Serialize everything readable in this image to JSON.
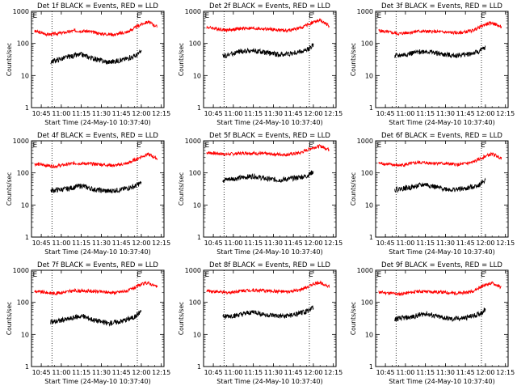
{
  "chart_data": [
    {
      "title": "Det 1f BLACK = Events, RED = LLD",
      "xlabel": "Start Time (24-May-10 10:37:40)",
      "ylabel": "Counts/sec",
      "type": "line",
      "yscale": "log",
      "ylim": [
        1,
        1000
      ],
      "xticks": [
        "10:45",
        "11:00",
        "11:15",
        "11:30",
        "11:45",
        "12:00",
        "12:15"
      ],
      "yticks": [
        "1",
        "10",
        "100",
        "1000"
      ],
      "markers": [
        "E",
        "E"
      ],
      "series": [
        {
          "color": "#ff0000",
          "values": [
            {
              "x": "10:40",
              "y": 240
            },
            {
              "x": "10:50",
              "y": 190
            },
            {
              "x": "11:00",
              "y": 210
            },
            {
              "x": "11:10",
              "y": 250
            },
            {
              "x": "11:20",
              "y": 240
            },
            {
              "x": "11:30",
              "y": 200
            },
            {
              "x": "11:40",
              "y": 190
            },
            {
              "x": "11:50",
              "y": 230
            },
            {
              "x": "12:00",
              "y": 400
            },
            {
              "x": "12:05",
              "y": 470
            },
            {
              "x": "12:12",
              "y": 330
            }
          ]
        },
        {
          "color": "#000000",
          "values": [
            {
              "x": "10:52",
              "y": 27
            },
            {
              "x": "11:05",
              "y": 38
            },
            {
              "x": "11:15",
              "y": 45
            },
            {
              "x": "11:25",
              "y": 33
            },
            {
              "x": "11:35",
              "y": 26
            },
            {
              "x": "11:45",
              "y": 30
            },
            {
              "x": "11:55",
              "y": 40
            },
            {
              "x": "12:00",
              "y": 55
            }
          ]
        }
      ]
    },
    {
      "title": "Det 2f BLACK = Events, RED = LLD",
      "xlabel": "Start Time (24-May-10 10:37:40)",
      "ylabel": "Counts/sec",
      "type": "line",
      "yscale": "log",
      "ylim": [
        1,
        1000
      ],
      "xticks": [
        "10:45",
        "11:00",
        "11:15",
        "11:30",
        "11:45",
        "12:00",
        "12:15"
      ],
      "yticks": [
        "1",
        "10",
        "100",
        "1000"
      ],
      "markers": [
        "E",
        "E"
      ],
      "series": [
        {
          "color": "#ff0000",
          "values": [
            {
              "x": "10:40",
              "y": 320
            },
            {
              "x": "10:55",
              "y": 260
            },
            {
              "x": "11:10",
              "y": 300
            },
            {
              "x": "11:25",
              "y": 280
            },
            {
              "x": "11:40",
              "y": 250
            },
            {
              "x": "11:50",
              "y": 300
            },
            {
              "x": "12:00",
              "y": 460
            },
            {
              "x": "12:05",
              "y": 520
            },
            {
              "x": "12:12",
              "y": 350
            }
          ]
        },
        {
          "color": "#000000",
          "values": [
            {
              "x": "10:52",
              "y": 40
            },
            {
              "x": "11:05",
              "y": 55
            },
            {
              "x": "11:15",
              "y": 60
            },
            {
              "x": "11:25",
              "y": 50
            },
            {
              "x": "11:35",
              "y": 45
            },
            {
              "x": "11:45",
              "y": 50
            },
            {
              "x": "11:55",
              "y": 60
            },
            {
              "x": "12:00",
              "y": 90
            }
          ]
        }
      ]
    },
    {
      "title": "Det 3f BLACK = Events, RED = LLD",
      "xlabel": "Start Time (24-May-10 10:37:40)",
      "ylabel": "Counts/sec",
      "type": "line",
      "yscale": "log",
      "ylim": [
        1,
        1000
      ],
      "xticks": [
        "10:45",
        "11:00",
        "11:15",
        "11:30",
        "11:45",
        "12:00",
        "12:15"
      ],
      "yticks": [
        "1",
        "10",
        "100",
        "1000"
      ],
      "markers": [
        "E",
        "E"
      ],
      "series": [
        {
          "color": "#ff0000",
          "values": [
            {
              "x": "10:40",
              "y": 250
            },
            {
              "x": "10:55",
              "y": 200
            },
            {
              "x": "11:10",
              "y": 240
            },
            {
              "x": "11:25",
              "y": 230
            },
            {
              "x": "11:40",
              "y": 210
            },
            {
              "x": "11:50",
              "y": 250
            },
            {
              "x": "12:00",
              "y": 390
            },
            {
              "x": "12:05",
              "y": 440
            },
            {
              "x": "12:12",
              "y": 320
            }
          ]
        },
        {
          "color": "#000000",
          "values": [
            {
              "x": "10:52",
              "y": 40
            },
            {
              "x": "11:05",
              "y": 50
            },
            {
              "x": "11:15",
              "y": 58
            },
            {
              "x": "11:25",
              "y": 48
            },
            {
              "x": "11:35",
              "y": 42
            },
            {
              "x": "11:45",
              "y": 45
            },
            {
              "x": "11:55",
              "y": 55
            },
            {
              "x": "12:00",
              "y": 75
            }
          ]
        }
      ]
    },
    {
      "title": "Det 4f BLACK = Events, RED = LLD",
      "xlabel": "Start Time (24-May-10 10:37:40)",
      "ylabel": "Counts/sec",
      "type": "line",
      "yscale": "log",
      "ylim": [
        1,
        1000
      ],
      "xticks": [
        "10:45",
        "11:00",
        "11:15",
        "11:30",
        "11:45",
        "12:00",
        "12:15"
      ],
      "yticks": [
        "1",
        "10",
        "100",
        "1000"
      ],
      "markers": [
        "E",
        "E"
      ],
      "series": [
        {
          "color": "#ff0000",
          "values": [
            {
              "x": "10:40",
              "y": 190
            },
            {
              "x": "10:55",
              "y": 160
            },
            {
              "x": "11:10",
              "y": 200
            },
            {
              "x": "11:25",
              "y": 190
            },
            {
              "x": "11:40",
              "y": 170
            },
            {
              "x": "11:50",
              "y": 200
            },
            {
              "x": "12:00",
              "y": 320
            },
            {
              "x": "12:05",
              "y": 380
            },
            {
              "x": "12:12",
              "y": 280
            }
          ]
        },
        {
          "color": "#000000",
          "values": [
            {
              "x": "10:52",
              "y": 28
            },
            {
              "x": "11:05",
              "y": 32
            },
            {
              "x": "11:15",
              "y": 40
            },
            {
              "x": "11:25",
              "y": 30
            },
            {
              "x": "11:35",
              "y": 27
            },
            {
              "x": "11:45",
              "y": 30
            },
            {
              "x": "11:55",
              "y": 38
            },
            {
              "x": "12:00",
              "y": 50
            }
          ]
        }
      ]
    },
    {
      "title": "Det 5f BLACK = Events, RED = LLD",
      "xlabel": "Start Time (24-May-10 10:37:40)",
      "ylabel": "Counts/sec",
      "type": "line",
      "yscale": "log",
      "ylim": [
        1,
        1000
      ],
      "xticks": [
        "10:45",
        "11:00",
        "11:15",
        "11:30",
        "11:45",
        "12:00",
        "12:15"
      ],
      "yticks": [
        "1",
        "10",
        "100",
        "1000"
      ],
      "markers": [
        "E",
        "E"
      ],
      "series": [
        {
          "color": "#ff0000",
          "values": [
            {
              "x": "10:40",
              "y": 430
            },
            {
              "x": "10:55",
              "y": 380
            },
            {
              "x": "11:10",
              "y": 420
            },
            {
              "x": "11:25",
              "y": 390
            },
            {
              "x": "11:40",
              "y": 370
            },
            {
              "x": "11:50",
              "y": 420
            },
            {
              "x": "12:00",
              "y": 620
            },
            {
              "x": "12:05",
              "y": 680
            },
            {
              "x": "12:12",
              "y": 540
            }
          ]
        },
        {
          "color": "#000000",
          "values": [
            {
              "x": "10:52",
              "y": 60
            },
            {
              "x": "11:05",
              "y": 70
            },
            {
              "x": "11:15",
              "y": 80
            },
            {
              "x": "11:25",
              "y": 65
            },
            {
              "x": "11:35",
              "y": 60
            },
            {
              "x": "11:45",
              "y": 68
            },
            {
              "x": "11:55",
              "y": 80
            },
            {
              "x": "12:00",
              "y": 110
            }
          ]
        }
      ]
    },
    {
      "title": "Det 6f BLACK = Events, RED = LLD",
      "xlabel": "Start Time (24-May-10 10:37:40)",
      "ylabel": "Counts/sec",
      "type": "line",
      "yscale": "log",
      "ylim": [
        1,
        1000
      ],
      "xticks": [
        "10:45",
        "11:00",
        "11:15",
        "11:30",
        "11:45",
        "12:00",
        "12:15"
      ],
      "yticks": [
        "1",
        "10",
        "100",
        "1000"
      ],
      "markers": [
        "E",
        "E"
      ],
      "series": [
        {
          "color": "#ff0000",
          "values": [
            {
              "x": "10:40",
              "y": 200
            },
            {
              "x": "10:55",
              "y": 170
            },
            {
              "x": "11:10",
              "y": 210
            },
            {
              "x": "11:25",
              "y": 200
            },
            {
              "x": "11:40",
              "y": 180
            },
            {
              "x": "11:50",
              "y": 210
            },
            {
              "x": "12:00",
              "y": 330
            },
            {
              "x": "12:05",
              "y": 390
            },
            {
              "x": "12:12",
              "y": 290
            }
          ]
        },
        {
          "color": "#000000",
          "values": [
            {
              "x": "10:52",
              "y": 30
            },
            {
              "x": "11:05",
              "y": 36
            },
            {
              "x": "11:15",
              "y": 44
            },
            {
              "x": "11:25",
              "y": 34
            },
            {
              "x": "11:35",
              "y": 30
            },
            {
              "x": "11:45",
              "y": 32
            },
            {
              "x": "11:55",
              "y": 42
            },
            {
              "x": "12:00",
              "y": 60
            }
          ]
        }
      ]
    },
    {
      "title": "Det 7f BLACK = Events, RED = LLD",
      "xlabel": "Start Time (24-May-10 10:37:40)",
      "ylabel": "Counts/sec",
      "type": "line",
      "yscale": "log",
      "ylim": [
        1,
        1000
      ],
      "xticks": [
        "10:45",
        "11:00",
        "11:15",
        "11:30",
        "11:45",
        "12:00",
        "12:15"
      ],
      "yticks": [
        "1",
        "10",
        "100",
        "1000"
      ],
      "markers": [
        "E",
        "E"
      ],
      "series": [
        {
          "color": "#ff0000",
          "values": [
            {
              "x": "10:40",
              "y": 220
            },
            {
              "x": "10:55",
              "y": 190
            },
            {
              "x": "11:10",
              "y": 230
            },
            {
              "x": "11:25",
              "y": 220
            },
            {
              "x": "11:40",
              "y": 200
            },
            {
              "x": "11:50",
              "y": 230
            },
            {
              "x": "12:00",
              "y": 360
            },
            {
              "x": "12:05",
              "y": 410
            },
            {
              "x": "12:12",
              "y": 300
            }
          ]
        },
        {
          "color": "#000000",
          "values": [
            {
              "x": "10:52",
              "y": 24
            },
            {
              "x": "11:05",
              "y": 30
            },
            {
              "x": "11:15",
              "y": 38
            },
            {
              "x": "11:25",
              "y": 28
            },
            {
              "x": "11:35",
              "y": 22
            },
            {
              "x": "11:45",
              "y": 26
            },
            {
              "x": "11:55",
              "y": 35
            },
            {
              "x": "12:00",
              "y": 55
            }
          ]
        }
      ]
    },
    {
      "title": "Det 8f BLACK = Events, RED = LLD",
      "xlabel": "Start Time (24-May-10 10:37:40)",
      "ylabel": "Counts/sec",
      "type": "line",
      "yscale": "log",
      "ylim": [
        1,
        1000
      ],
      "xticks": [
        "10:45",
        "11:00",
        "11:15",
        "11:30",
        "11:45",
        "12:00",
        "12:15"
      ],
      "yticks": [
        "1",
        "10",
        "100",
        "1000"
      ],
      "markers": [
        "E",
        "E"
      ],
      "series": [
        {
          "color": "#ff0000",
          "values": [
            {
              "x": "10:40",
              "y": 230
            },
            {
              "x": "10:55",
              "y": 200
            },
            {
              "x": "11:10",
              "y": 240
            },
            {
              "x": "11:25",
              "y": 230
            },
            {
              "x": "11:40",
              "y": 210
            },
            {
              "x": "11:50",
              "y": 240
            },
            {
              "x": "12:00",
              "y": 370
            },
            {
              "x": "12:05",
              "y": 420
            },
            {
              "x": "12:12",
              "y": 310
            }
          ]
        },
        {
          "color": "#000000",
          "values": [
            {
              "x": "10:52",
              "y": 35
            },
            {
              "x": "11:05",
              "y": 40
            },
            {
              "x": "11:15",
              "y": 50
            },
            {
              "x": "11:25",
              "y": 40
            },
            {
              "x": "11:35",
              "y": 36
            },
            {
              "x": "11:45",
              "y": 40
            },
            {
              "x": "11:55",
              "y": 52
            },
            {
              "x": "12:00",
              "y": 70
            }
          ]
        }
      ]
    },
    {
      "title": "Det 9f BLACK = Events, RED = LLD",
      "xlabel": "Start Time (24-May-10 10:37:40)",
      "ylabel": "Counts/sec",
      "type": "line",
      "yscale": "log",
      "ylim": [
        1,
        1000
      ],
      "xticks": [
        "10:45",
        "11:00",
        "11:15",
        "11:30",
        "11:45",
        "12:00",
        "12:15"
      ],
      "yticks": [
        "1",
        "10",
        "100",
        "1000"
      ],
      "markers": [
        "E",
        "E"
      ],
      "series": [
        {
          "color": "#ff0000",
          "values": [
            {
              "x": "10:40",
              "y": 210
            },
            {
              "x": "10:55",
              "y": 180
            },
            {
              "x": "11:10",
              "y": 220
            },
            {
              "x": "11:25",
              "y": 210
            },
            {
              "x": "11:40",
              "y": 190
            },
            {
              "x": "11:50",
              "y": 220
            },
            {
              "x": "12:00",
              "y": 350
            },
            {
              "x": "12:05",
              "y": 400
            },
            {
              "x": "12:12",
              "y": 290
            }
          ]
        },
        {
          "color": "#000000",
          "values": [
            {
              "x": "10:52",
              "y": 30
            },
            {
              "x": "11:05",
              "y": 35
            },
            {
              "x": "11:15",
              "y": 45
            },
            {
              "x": "11:25",
              "y": 35
            },
            {
              "x": "11:35",
              "y": 30
            },
            {
              "x": "11:45",
              "y": 33
            },
            {
              "x": "11:55",
              "y": 42
            },
            {
              "x": "12:00",
              "y": 60
            }
          ]
        }
      ]
    }
  ]
}
